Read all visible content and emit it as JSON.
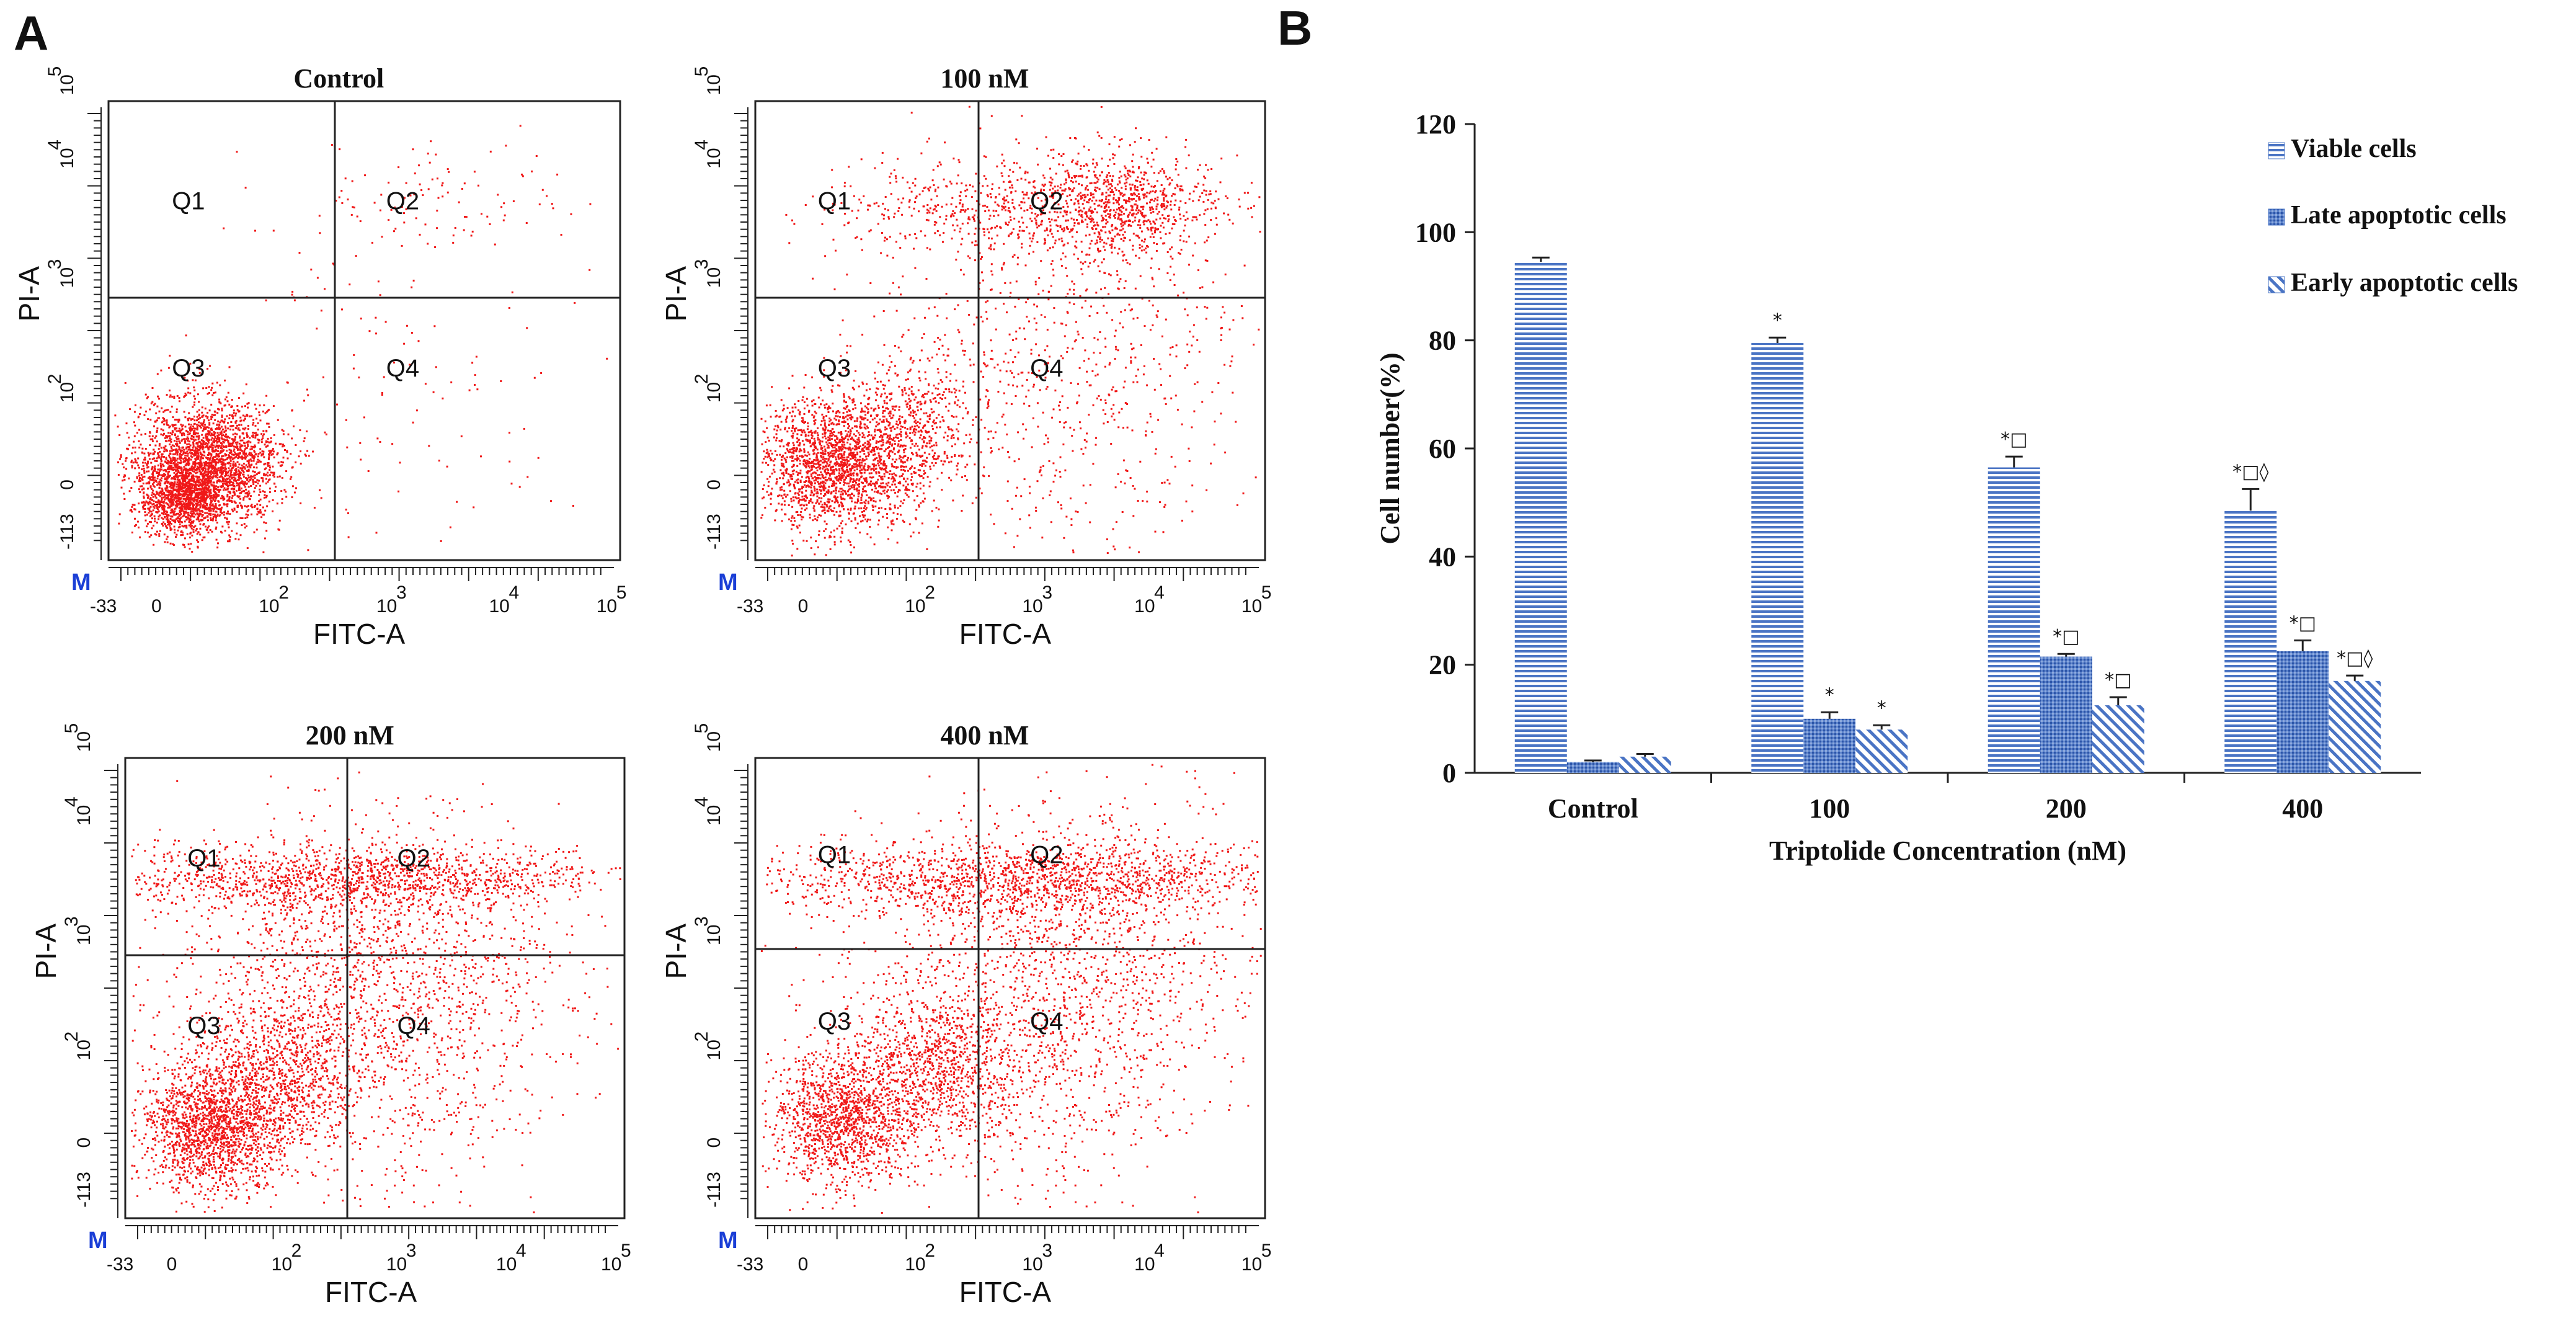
{
  "panel_a_label": "A",
  "panel_b_label": "B",
  "plots": [
    {
      "title": "Control",
      "q": {
        "q1": "Q1",
        "q2": "Q2",
        "q3": "Q3",
        "q4": "Q4"
      },
      "xlabel": "FITC-A",
      "ylabel": "PI-A",
      "marker": "M",
      "x_ticks": [
        "-33",
        "0",
        "10",
        "10",
        "10",
        "10"
      ],
      "y_ticks": [
        "-113",
        "0",
        "10",
        "10",
        "10",
        "10"
      ]
    },
    {
      "title": "100 nM",
      "q": {
        "q1": "Q1",
        "q2": "Q2",
        "q3": "Q3",
        "q4": "Q4"
      },
      "xlabel": "FITC-A",
      "ylabel": "PI-A",
      "marker": "M",
      "x_ticks": [
        "-33",
        "0",
        "10",
        "10",
        "10",
        "10"
      ],
      "y_ticks": [
        "-113",
        "0",
        "10",
        "10",
        "10",
        "10"
      ]
    },
    {
      "title": "200 nM",
      "q": {
        "q1": "Q1",
        "q2": "Q2",
        "q3": "Q3",
        "q4": "Q4"
      },
      "xlabel": "FITC-A",
      "ylabel": "PI-A",
      "marker": "M",
      "x_ticks": [
        "-33",
        "0",
        "10",
        "10",
        "10",
        "10"
      ],
      "y_ticks": [
        "-113",
        "0",
        "10",
        "10",
        "10",
        "10"
      ]
    },
    {
      "title": "400 nM",
      "q": {
        "q1": "Q1",
        "q2": "Q2",
        "q3": "Q3",
        "q4": "Q4"
      },
      "xlabel": "FITC-A",
      "ylabel": "PI-A",
      "marker": "M",
      "x_ticks": [
        "-33",
        "0",
        "10",
        "10",
        "10",
        "10"
      ],
      "y_ticks": [
        "-113",
        "0",
        "10",
        "10",
        "10",
        "10"
      ]
    }
  ],
  "exponents": [
    "2",
    "3",
    "4",
    "5"
  ],
  "colors": {
    "dots": "#f01818",
    "bar": "#4a74c4",
    "axis": "#111111"
  },
  "chart_data": {
    "type": "bar",
    "title": "",
    "xlabel": "Triptolide Concentration (nM)",
    "ylabel": "Cell number(%)",
    "ylim": [
      0,
      120
    ],
    "y_ticks": [
      0,
      20,
      40,
      60,
      80,
      100,
      120
    ],
    "categories": [
      "Control",
      "100",
      "200",
      "400"
    ],
    "series": [
      {
        "name": "Viable cells",
        "pattern": "horizontal",
        "values": [
          94.5,
          79.5,
          56.5,
          48.5
        ],
        "errors": [
          0.8,
          1.0,
          2.0,
          4.0
        ]
      },
      {
        "name": "Late apoptotic cells",
        "pattern": "dense",
        "values": [
          2.0,
          10.0,
          21.5,
          22.5
        ],
        "errors": [
          0.3,
          1.2,
          0.5,
          2.0
        ]
      },
      {
        "name": "Early apoptotic cells",
        "pattern": "diagonal",
        "values": [
          3.0,
          8.0,
          12.5,
          17.0
        ],
        "errors": [
          0.5,
          0.8,
          1.5,
          1.0
        ]
      }
    ],
    "annotations": [
      [
        "",
        "",
        ""
      ],
      [
        "*",
        "*",
        "*"
      ],
      [
        "*□",
        "*□",
        "*□"
      ],
      [
        "*□◊",
        "*□",
        "*□◊"
      ]
    ],
    "legend_position": "top-right"
  }
}
